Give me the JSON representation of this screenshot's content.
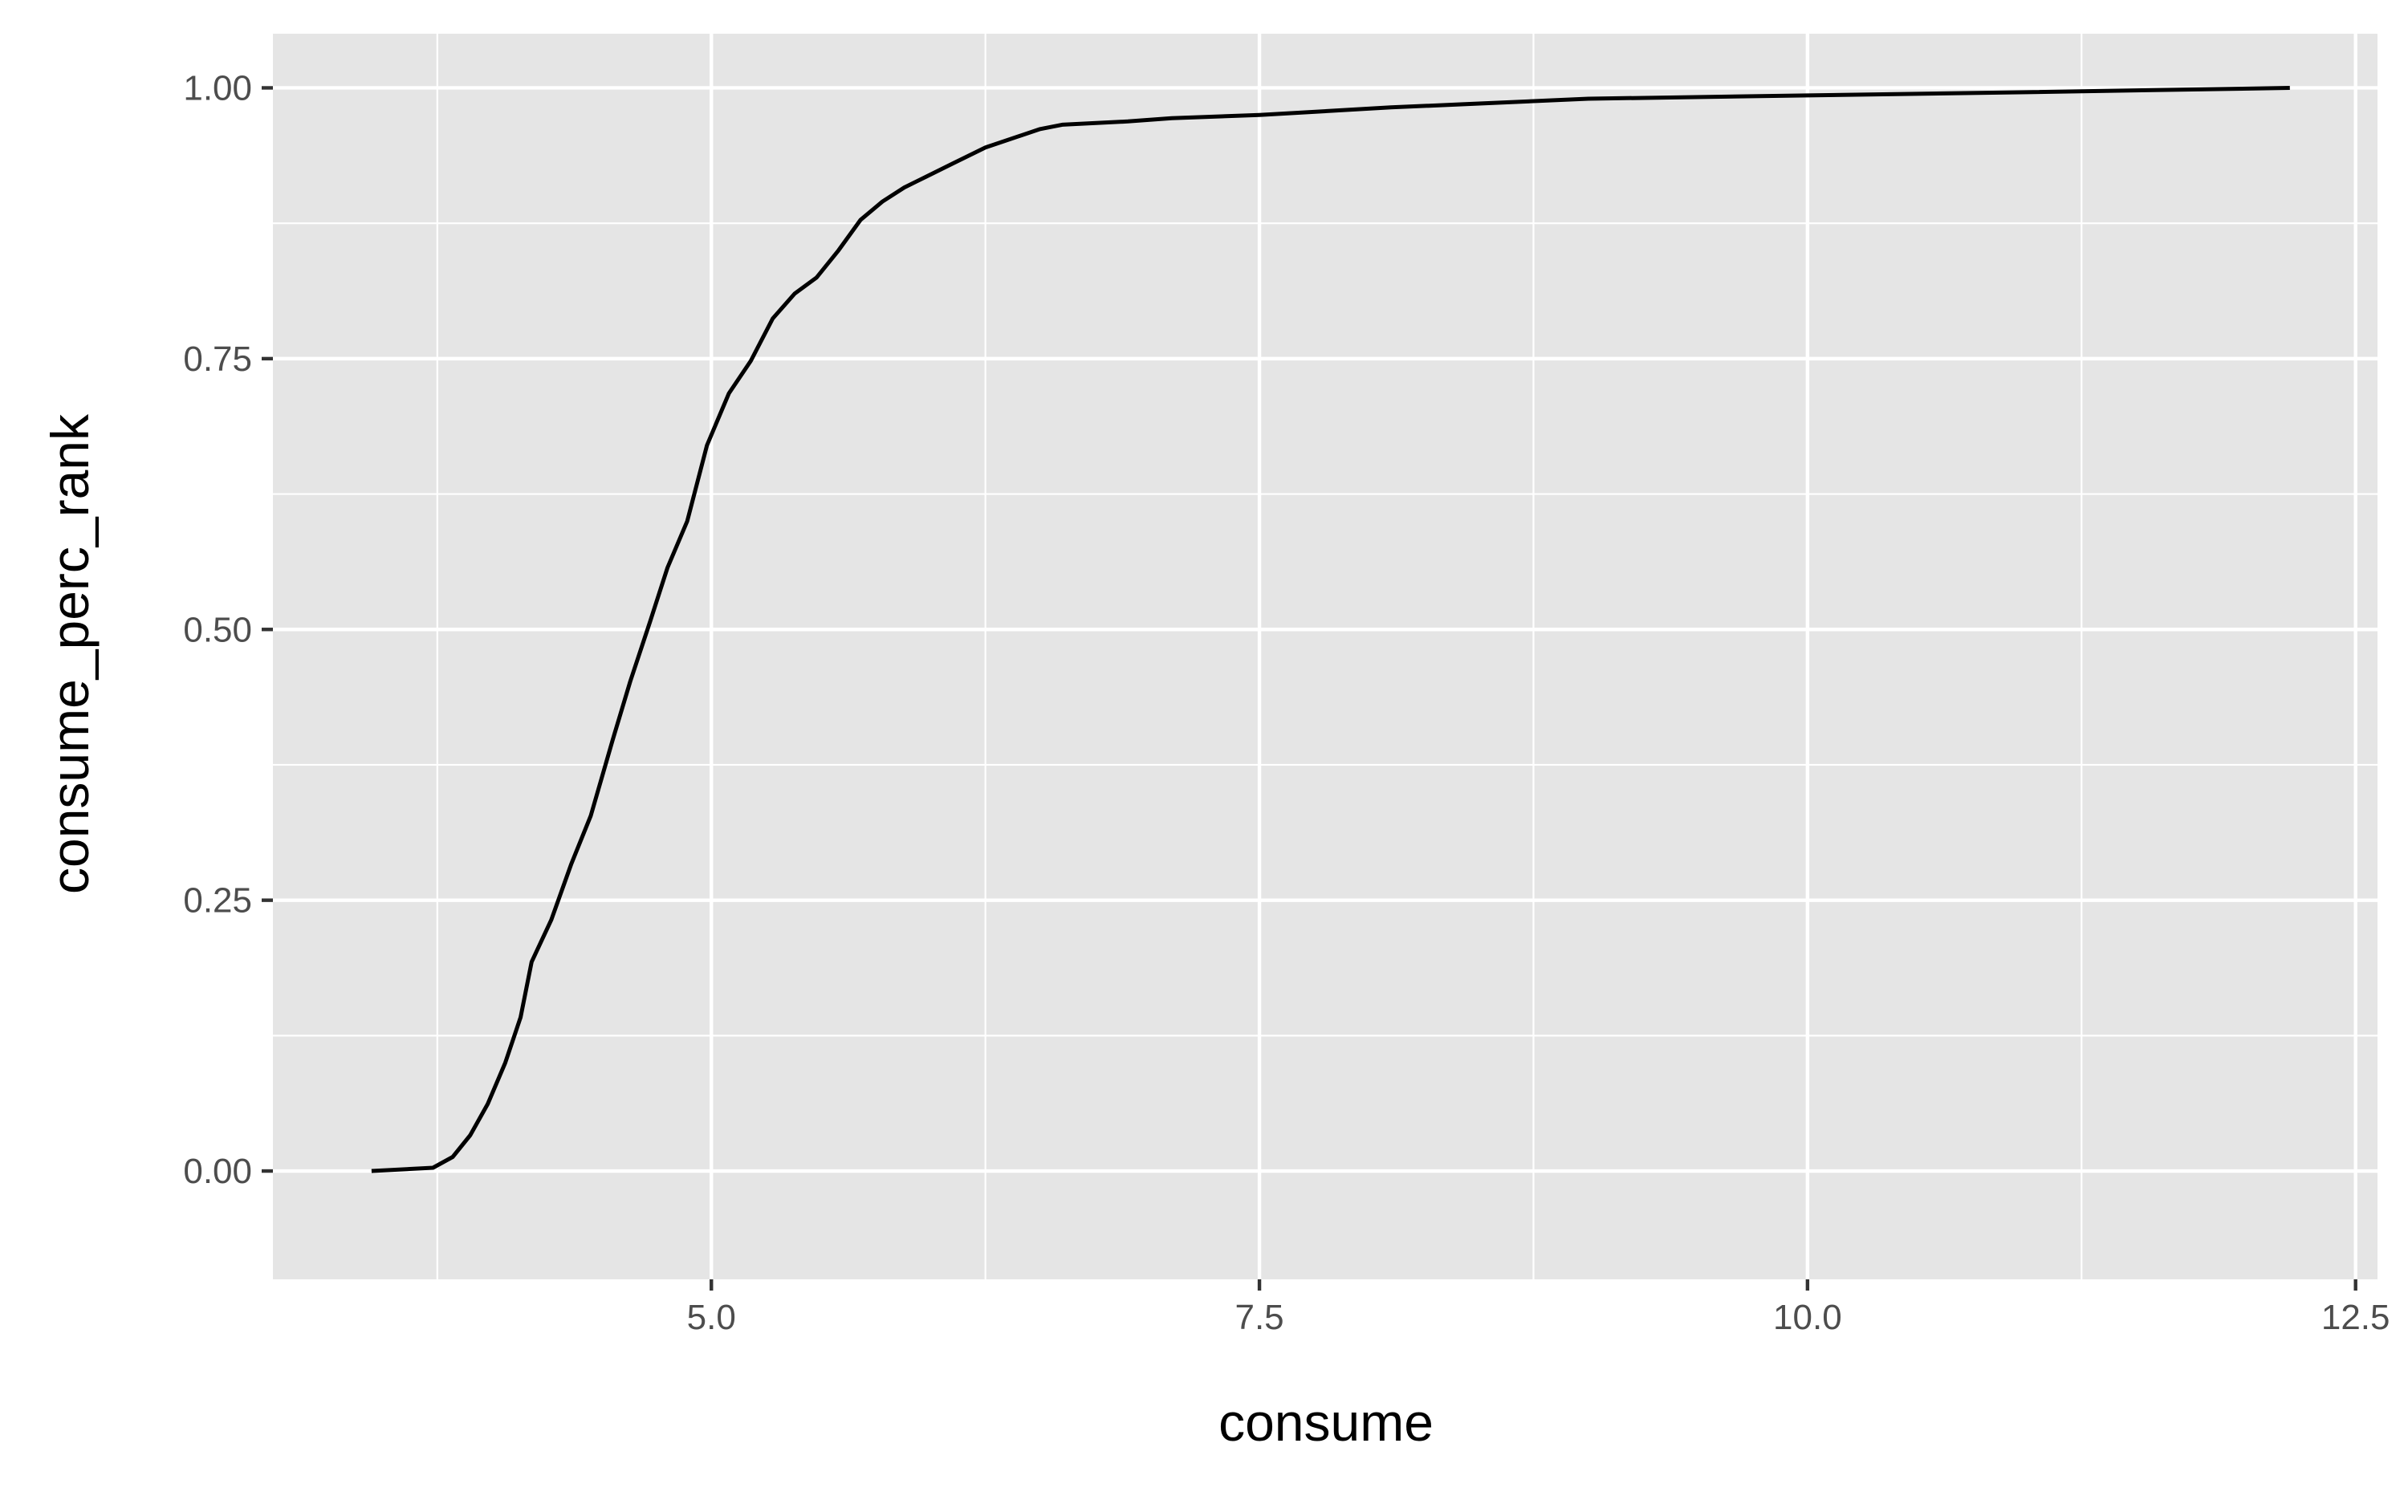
{
  "chart_data": {
    "type": "line",
    "title": "",
    "xlabel": "consume",
    "ylabel": "consume_perc_rank",
    "xlim": [
      3.0,
      12.6
    ],
    "ylim": [
      -0.1,
      1.05
    ],
    "x_ticks": [
      5.0,
      7.5,
      10.0,
      12.5
    ],
    "x_tick_labels": [
      "5.0",
      "7.5",
      "10.0",
      "12.5"
    ],
    "x_minor_ticks": [
      3.75,
      6.25,
      8.75,
      11.25
    ],
    "y_ticks": [
      0.0,
      0.25,
      0.5,
      0.75,
      1.0
    ],
    "y_tick_labels": [
      "0.00",
      "0.25",
      "0.50",
      "0.75",
      "1.00"
    ],
    "y_minor_ticks": [
      0.125,
      0.375,
      0.625,
      0.875
    ],
    "grid": true,
    "legend": "none",
    "colors": {
      "panel": "#e5e5e5",
      "grid": "#ffffff",
      "line": "#000000",
      "tick_text": "#4d4d4d"
    },
    "series": [
      {
        "x": [
          3.45,
          3.73,
          3.82,
          3.9,
          3.98,
          4.06,
          4.13,
          4.18,
          4.27,
          4.36,
          4.45,
          4.55,
          4.63,
          4.72,
          4.8,
          4.89,
          4.98,
          5.08,
          5.18,
          5.28,
          5.38,
          5.48,
          5.58,
          5.68,
          5.78,
          5.88,
          5.98,
          6.1,
          6.25,
          6.5,
          6.6,
          6.9,
          7.1,
          7.5,
          8.1,
          9.0,
          10.0,
          11.0,
          12.2
        ],
        "y": [
          0.0,
          0.003,
          0.013,
          0.033,
          0.062,
          0.1,
          0.142,
          0.193,
          0.232,
          0.283,
          0.328,
          0.398,
          0.452,
          0.507,
          0.557,
          0.6,
          0.67,
          0.718,
          0.748,
          0.787,
          0.81,
          0.825,
          0.85,
          0.878,
          0.895,
          0.908,
          0.918,
          0.93,
          0.945,
          0.962,
          0.966,
          0.969,
          0.972,
          0.975,
          0.982,
          0.99,
          0.993,
          0.996,
          1.0
        ]
      }
    ]
  }
}
